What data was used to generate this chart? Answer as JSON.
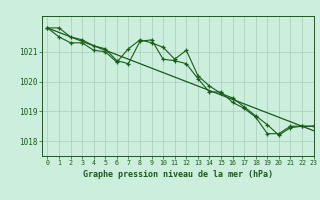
{
  "title": "Graphe pression niveau de la mer (hPa)",
  "background_color": "#cceedd",
  "grid_color": "#aaccbb",
  "line_color": "#1a5c1a",
  "xlim": [
    -0.5,
    23
  ],
  "ylim": [
    1017.5,
    1022.2
  ],
  "yticks": [
    1018,
    1019,
    1020,
    1021
  ],
  "xticks": [
    0,
    1,
    2,
    3,
    4,
    5,
    6,
    7,
    8,
    9,
    10,
    11,
    12,
    13,
    14,
    15,
    16,
    17,
    18,
    19,
    20,
    21,
    22,
    23
  ],
  "series1": {
    "x": [
      0,
      1,
      2,
      3,
      4,
      5,
      6,
      7,
      8,
      9,
      10,
      11,
      12,
      13,
      14,
      15,
      16,
      17,
      18,
      19,
      20,
      21,
      22,
      23
    ],
    "y": [
      1021.8,
      1021.8,
      1021.5,
      1021.4,
      1021.2,
      1021.1,
      1020.7,
      1020.6,
      1021.35,
      1021.4,
      1020.75,
      1020.7,
      1020.6,
      1020.1,
      1019.65,
      1019.65,
      1019.3,
      1019.1,
      1018.8,
      1018.25,
      1018.25,
      1018.5,
      1018.5,
      1018.5
    ]
  },
  "series2": {
    "x": [
      0,
      23
    ],
    "y": [
      1021.8,
      1018.35
    ]
  },
  "series3": {
    "x": [
      0,
      1,
      2,
      3,
      4,
      5,
      6,
      7,
      8,
      9,
      10,
      11,
      12,
      13,
      14,
      15,
      16,
      17,
      18,
      19,
      20,
      21,
      22,
      23
    ],
    "y": [
      1021.8,
      1021.5,
      1021.3,
      1021.3,
      1021.05,
      1021.0,
      1020.65,
      1021.1,
      1021.4,
      1021.3,
      1021.15,
      1020.75,
      1021.05,
      1020.2,
      1019.85,
      1019.6,
      1019.45,
      1019.15,
      1018.85,
      1018.55,
      1018.2,
      1018.45,
      1018.5,
      1018.5
    ]
  },
  "figsize": [
    3.2,
    2.0
  ],
  "dpi": 100
}
